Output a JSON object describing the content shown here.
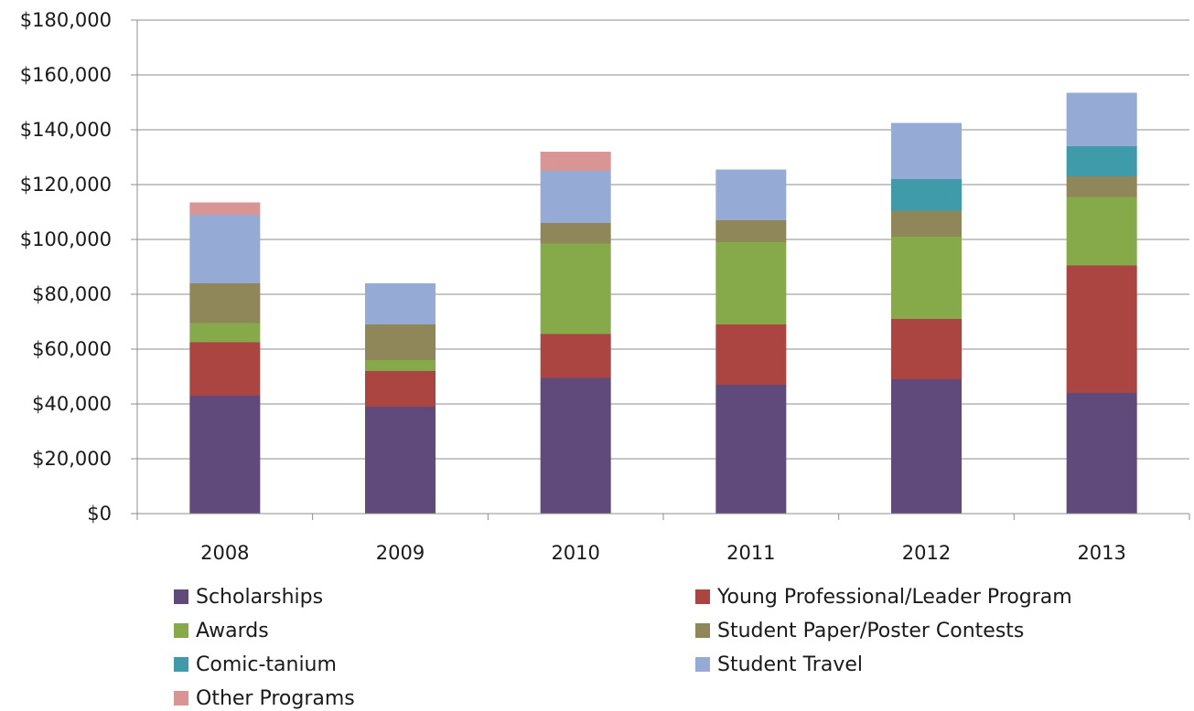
{
  "chart_data": {
    "type": "bar",
    "stacked": true,
    "categories": [
      "2008",
      "2009",
      "2010",
      "2011",
      "2012",
      "2013"
    ],
    "series": [
      {
        "name": "Scholarships",
        "color": "#604a7b",
        "values": [
          43000,
          39000,
          49500,
          47000,
          49000,
          44000
        ]
      },
      {
        "name": "Young Professional/Leader Program",
        "color": "#ab4541",
        "values": [
          19500,
          13000,
          16000,
          22000,
          22000,
          46500
        ]
      },
      {
        "name": "Awards",
        "color": "#86a94a",
        "values": [
          7000,
          4000,
          33000,
          30000,
          30000,
          25000
        ]
      },
      {
        "name": "Student Paper/Poster Contests",
        "color": "#8f875a",
        "values": [
          14500,
          13000,
          7500,
          8000,
          9500,
          7500
        ]
      },
      {
        "name": "Comic-tanium",
        "color": "#3f9aaa",
        "values": [
          0,
          0,
          0,
          0,
          11500,
          11000
        ]
      },
      {
        "name": "Student Travel",
        "color": "#95abd5",
        "values": [
          25000,
          15000,
          19000,
          18500,
          20500,
          19500
        ]
      },
      {
        "name": "Other Programs",
        "color": "#d99594",
        "values": [
          4500,
          0,
          7000,
          0,
          0,
          0
        ]
      }
    ],
    "ylim": [
      0,
      180000
    ],
    "yticks": [
      0,
      20000,
      40000,
      60000,
      80000,
      100000,
      120000,
      140000,
      160000,
      180000
    ],
    "ytick_labels": [
      "$0",
      "$20,000",
      "$40,000",
      "$60,000",
      "$80,000",
      "$100,000",
      "$120,000",
      "$140,000",
      "$160,000",
      "$180,000"
    ],
    "grid": true,
    "legend_position": "bottom"
  }
}
